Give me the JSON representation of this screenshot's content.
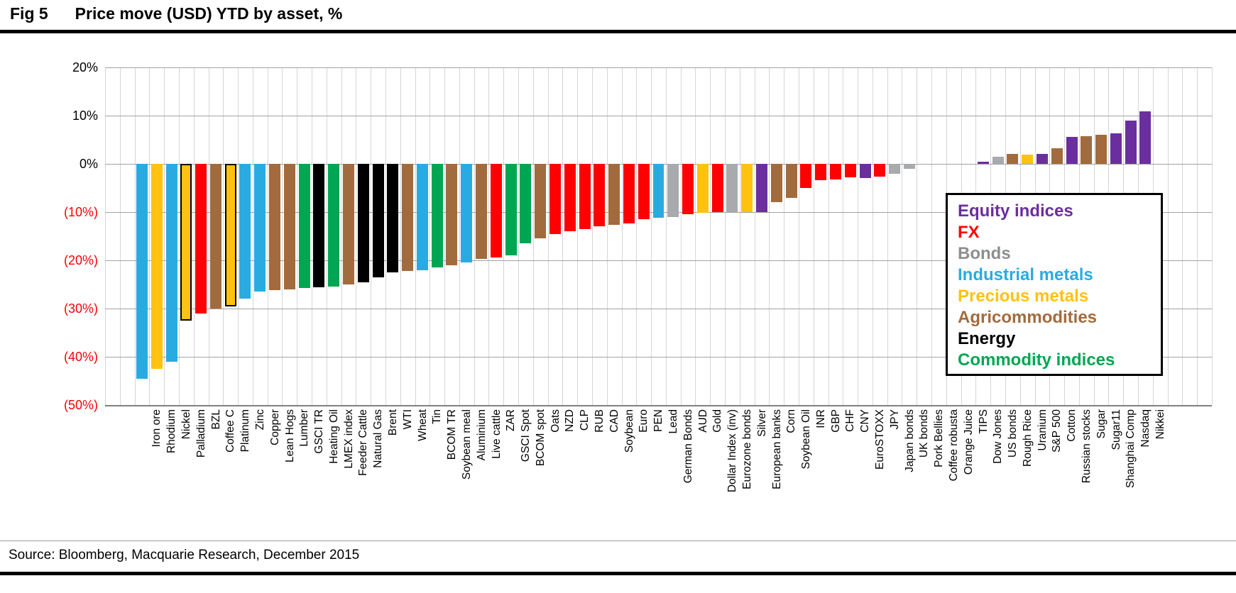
{
  "title": {
    "fig_label": "Fig 5",
    "text": "Price move (USD) YTD by asset, %"
  },
  "source_text": "Source: Bloomberg, Macquarie Research, December 2015",
  "palette": {
    "equity": "#6b2e9e",
    "fx": "#fe0000",
    "bonds": "#a8aaad",
    "industrial": "#29abe2",
    "precious": "#ffc20e",
    "agri": "#a26b3d",
    "energy": "#000000",
    "commodity": "#00a651",
    "highlight_outline": "#000000",
    "negative_tick_color": "#fe0000",
    "grid_vertical": "#d6d6d6",
    "grid_horizontal": "#a3a3a3",
    "axis_bottom": "#808080"
  },
  "legend": {
    "items": [
      {
        "label": "Equity indices",
        "category": "equity",
        "text_color": "#6b2e9e"
      },
      {
        "label": "FX",
        "category": "fx",
        "text_color": "#fe0000"
      },
      {
        "label": "Bonds",
        "category": "bonds",
        "text_color": "#8c8e90"
      },
      {
        "label": "Industrial metals",
        "category": "industrial",
        "text_color": "#29abe2"
      },
      {
        "label": "Precious metals",
        "category": "precious",
        "text_color": "#ffc20e"
      },
      {
        "label": "Agricommodities",
        "category": "agri",
        "text_color": "#a26b3d"
      },
      {
        "label": "Energy",
        "category": "energy",
        "text_color": "#000000"
      },
      {
        "label": "Commodity indices",
        "category": "commodity",
        "text_color": "#00a651"
      }
    ]
  },
  "chart_data": {
    "type": "bar",
    "title": "Price move (USD) YTD by asset, %",
    "xlabel": "",
    "ylabel": "%",
    "ylim": [
      -50,
      20
    ],
    "ytick_step": 10,
    "yticks": [
      {
        "value": 20,
        "label": "20%"
      },
      {
        "value": 10,
        "label": "10%"
      },
      {
        "value": 0,
        "label": "0%"
      },
      {
        "value": -10,
        "label": "(10%)"
      },
      {
        "value": -20,
        "label": "(20%)"
      },
      {
        "value": -30,
        "label": "(30%)"
      },
      {
        "value": -40,
        "label": "(40%)"
      },
      {
        "value": -50,
        "label": "(50%)"
      }
    ],
    "grid": true,
    "legend_position": "right-inside",
    "bars": [
      {
        "label": "Iron ore",
        "value": -44.5,
        "category": "industrial"
      },
      {
        "label": "Rhodium",
        "value": -42.5,
        "category": "precious"
      },
      {
        "label": "Nickel",
        "value": -41.0,
        "category": "industrial"
      },
      {
        "label": "Palladium",
        "value": -32.5,
        "category": "precious",
        "outlined": true
      },
      {
        "label": "BZL",
        "value": -31.0,
        "category": "fx"
      },
      {
        "label": "Coffee C",
        "value": -30.0,
        "category": "agri"
      },
      {
        "label": "Platinum",
        "value": -29.5,
        "category": "precious",
        "outlined": true
      },
      {
        "label": "Zinc",
        "value": -28.0,
        "category": "industrial"
      },
      {
        "label": "Copper",
        "value": -26.5,
        "category": "industrial"
      },
      {
        "label": "Lean Hogs",
        "value": -26.2,
        "category": "agri"
      },
      {
        "label": "Lumber",
        "value": -26.0,
        "category": "agri"
      },
      {
        "label": "GSCI TR",
        "value": -25.8,
        "category": "commodity"
      },
      {
        "label": "Heating Oil",
        "value": -25.6,
        "category": "energy"
      },
      {
        "label": "LMEX index",
        "value": -25.5,
        "category": "commodity"
      },
      {
        "label": "Feeder Cattle",
        "value": -25.0,
        "category": "agri"
      },
      {
        "label": "Natural Gas",
        "value": -24.5,
        "category": "energy"
      },
      {
        "label": "Brent",
        "value": -23.5,
        "category": "energy"
      },
      {
        "label": "WTI",
        "value": -22.5,
        "category": "energy"
      },
      {
        "label": "Wheat",
        "value": -22.2,
        "category": "agri"
      },
      {
        "label": "Tin",
        "value": -22.0,
        "category": "industrial"
      },
      {
        "label": "BCOM TR",
        "value": -21.5,
        "category": "commodity"
      },
      {
        "label": "Soybean meal",
        "value": -21.0,
        "category": "agri"
      },
      {
        "label": "Aluminium",
        "value": -20.5,
        "category": "industrial"
      },
      {
        "label": "Live cattle",
        "value": -19.7,
        "category": "agri"
      },
      {
        "label": "ZAR",
        "value": -19.4,
        "category": "fx"
      },
      {
        "label": "GSCI Spot",
        "value": -19.0,
        "category": "commodity"
      },
      {
        "label": "BCOM spot",
        "value": -16.5,
        "category": "commodity"
      },
      {
        "label": "Oats",
        "value": -15.5,
        "category": "agri"
      },
      {
        "label": "NZD",
        "value": -14.5,
        "category": "fx"
      },
      {
        "label": "CLP",
        "value": -14.0,
        "category": "fx"
      },
      {
        "label": "RUB",
        "value": -13.5,
        "category": "fx"
      },
      {
        "label": "CAD",
        "value": -13.0,
        "category": "fx"
      },
      {
        "label": "Soybean",
        "value": -12.7,
        "category": "agri"
      },
      {
        "label": "Euro",
        "value": -12.4,
        "category": "fx"
      },
      {
        "label": "PEN",
        "value": -11.5,
        "category": "fx"
      },
      {
        "label": "Lead",
        "value": -11.2,
        "category": "industrial"
      },
      {
        "label": "German Bonds",
        "value": -11.0,
        "category": "bonds"
      },
      {
        "label": "AUD",
        "value": -10.5,
        "category": "fx"
      },
      {
        "label": "Gold",
        "value": -10.2,
        "category": "precious"
      },
      {
        "label": "Dollar Index (inv)",
        "value": -10.0,
        "category": "fx"
      },
      {
        "label": "Eurozone bonds",
        "value": -10.0,
        "category": "bonds"
      },
      {
        "label": "Silver",
        "value": -10.0,
        "category": "precious"
      },
      {
        "label": "European banks",
        "value": -10.0,
        "category": "equity"
      },
      {
        "label": "Corn",
        "value": -8.0,
        "category": "agri"
      },
      {
        "label": "Soybean Oil",
        "value": -7.0,
        "category": "agri"
      },
      {
        "label": "INR",
        "value": -5.0,
        "category": "fx"
      },
      {
        "label": "GBP",
        "value": -3.4,
        "category": "fx"
      },
      {
        "label": "CHF",
        "value": -3.2,
        "category": "fx"
      },
      {
        "label": "CNY",
        "value": -2.8,
        "category": "fx"
      },
      {
        "label": "EuroSTOXX",
        "value": -2.9,
        "category": "equity"
      },
      {
        "label": "JPY",
        "value": -2.6,
        "category": "fx"
      },
      {
        "label": "Japan bonds",
        "value": -2.0,
        "category": "bonds"
      },
      {
        "label": "UK bonds",
        "value": -1.0,
        "category": "bonds"
      },
      {
        "label": "Pork Bellies",
        "value": 0.0,
        "category": "agri"
      },
      {
        "label": "Coffee robusta",
        "value": 0.0,
        "category": "agri"
      },
      {
        "label": "Orange Juice",
        "value": 0.0,
        "category": "agri"
      },
      {
        "label": "TIPS",
        "value": 0.0,
        "category": "bonds"
      },
      {
        "label": "Dow Jones",
        "value": 0.5,
        "category": "equity"
      },
      {
        "label": "US bonds",
        "value": 1.5,
        "category": "bonds"
      },
      {
        "label": "Rough Rice",
        "value": 2.1,
        "category": "agri"
      },
      {
        "label": "Uranium",
        "value": 1.9,
        "category": "precious"
      },
      {
        "label": "S&P 500",
        "value": 2.1,
        "category": "equity"
      },
      {
        "label": "Cotton",
        "value": 3.2,
        "category": "agri"
      },
      {
        "label": "Russian stocks",
        "value": 5.6,
        "category": "equity"
      },
      {
        "label": "Sugar",
        "value": 5.8,
        "category": "agri"
      },
      {
        "label": "Sugar11",
        "value": 6.0,
        "category": "agri"
      },
      {
        "label": "Shanghai Comp",
        "value": 6.3,
        "category": "equity"
      },
      {
        "label": "Nasdaq",
        "value": 9.0,
        "category": "equity"
      },
      {
        "label": "Nikkei",
        "value": 10.9,
        "category": "equity"
      }
    ]
  }
}
